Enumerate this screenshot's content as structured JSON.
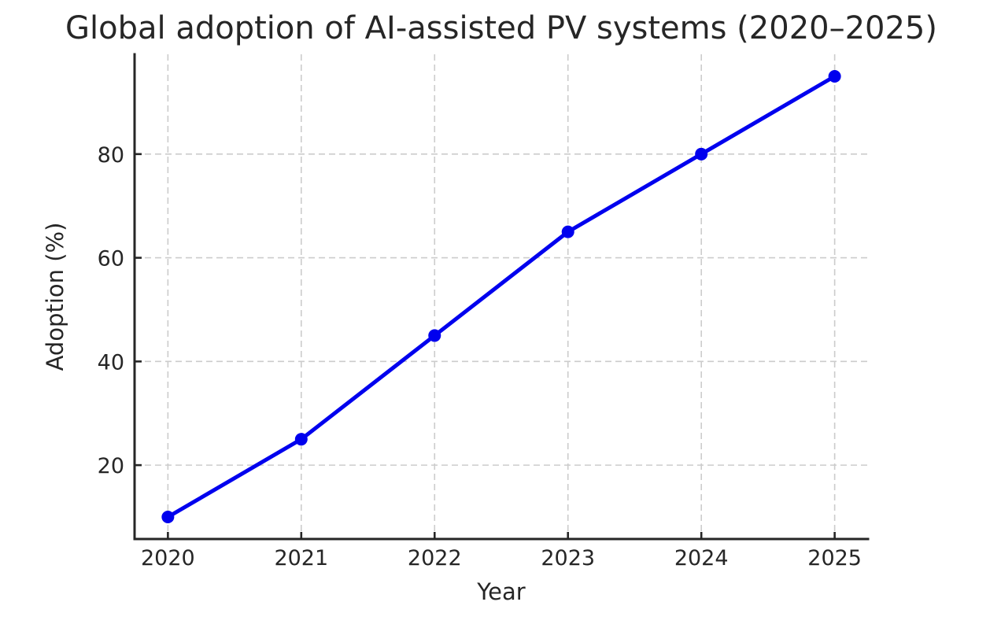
{
  "figure": {
    "background_color": "#ffffff"
  },
  "chart_data": {
    "type": "line",
    "title": "Global adoption of AI-assisted PV systems (2020–2025)",
    "xlabel": "Year",
    "ylabel": "Adoption (%)",
    "x": [
      2020,
      2021,
      2022,
      2023,
      2024,
      2025
    ],
    "series": [
      {
        "name": "Adoption (%)",
        "values": [
          10,
          25,
          45,
          65,
          80,
          95
        ]
      }
    ],
    "xticks": [
      2020,
      2021,
      2022,
      2023,
      2024,
      2025
    ],
    "yticks": [
      20,
      40,
      60,
      80
    ],
    "xlim": [
      2019.75,
      2025.25
    ],
    "ylim": [
      5.75,
      99.25
    ],
    "grid": "on",
    "grid_style": "dashed",
    "legend": "none",
    "marker": "circle",
    "marker_size_px": 8,
    "colors": {
      "line": "#0000ee",
      "marker": "#0000ee",
      "text": "#262626",
      "spine": "#262626",
      "grid": "#cccccc",
      "background": "#ffffff"
    }
  }
}
